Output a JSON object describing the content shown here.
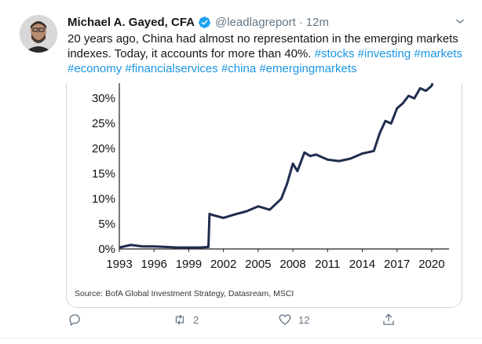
{
  "tweet": {
    "author_name": "Michael A. Gayed, CFA",
    "handle": "@leadlagreport",
    "separator": "·",
    "time": "12m",
    "text_plain": "20 years ago, China had almost no representation in the emerging markets indexes. Today, it accounts for more than 40%. ",
    "hashtags": [
      "#stocks",
      "#investing",
      "#markets",
      "#economy",
      "#financialservices",
      "#china",
      "#emergingmarkets"
    ],
    "actions": {
      "retweets": "2",
      "likes": "12"
    }
  },
  "colors": {
    "link": "#1b95e0",
    "line": "#1f2d4f",
    "muted": "#657786",
    "verified": "#1da1f2"
  },
  "icons": [
    "verified-badge-icon",
    "chevron-down-icon",
    "reply-icon",
    "retweet-icon",
    "like-icon",
    "share-icon"
  ],
  "chart_data": {
    "type": "line",
    "source": "Source: BofA Global Investment Strategy, Datasream, MSCI",
    "y_ticks": [
      "0%",
      "5%",
      "10%",
      "15%",
      "20%",
      "25%",
      "30%"
    ],
    "x_ticks": [
      "1993",
      "1996",
      "1999",
      "2002",
      "2005",
      "2008",
      "2011",
      "2014",
      "2017",
      "2020"
    ],
    "ylim": [
      0,
      33
    ],
    "xlim": [
      1993,
      2021.5
    ],
    "series": [
      {
        "x": [
          1993,
          1994,
          1995,
          1996,
          1997,
          1998,
          1999,
          2000,
          2000.7,
          2000.8,
          2001,
          2002,
          2003,
          2004,
          2005,
          2006,
          2007,
          2007.5,
          2008,
          2008.4,
          2009,
          2009.5,
          2010,
          2011,
          2012,
          2013,
          2014,
          2015,
          2015.5,
          2016,
          2016.5,
          2017,
          2017.5,
          2018,
          2018.5,
          2019,
          2019.5,
          2020,
          2020.3
        ],
        "values": [
          0.3,
          0.8,
          0.5,
          0.5,
          0.4,
          0.3,
          0.3,
          0.3,
          0.4,
          7.0,
          6.8,
          6.2,
          6.9,
          7.5,
          8.5,
          7.8,
          10.0,
          13.0,
          17.0,
          15.5,
          19.2,
          18.5,
          18.8,
          17.8,
          17.5,
          18.0,
          19.0,
          19.5,
          23.0,
          25.5,
          25.0,
          28.0,
          29.0,
          30.5,
          30.0,
          32.0,
          31.5,
          32.5,
          35.0
        ]
      }
    ]
  }
}
